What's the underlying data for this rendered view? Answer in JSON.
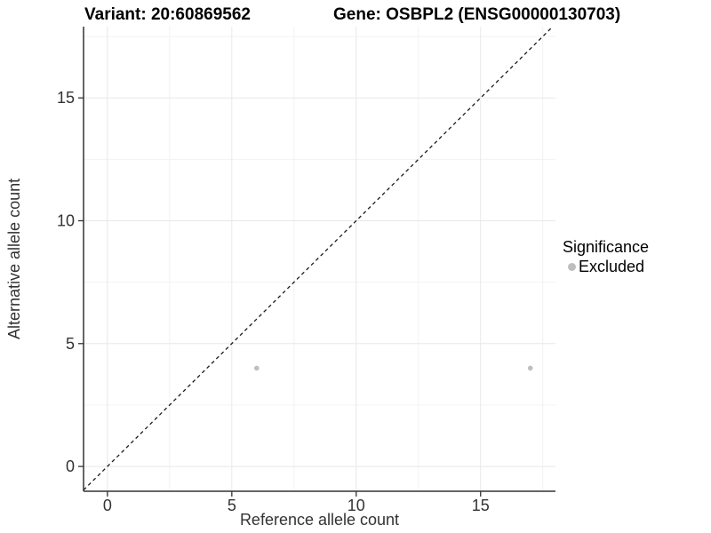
{
  "chart_data": {
    "type": "scatter",
    "titles": {
      "left": "Variant: 20:60869562",
      "right": "Gene: OSBPL2 (ENSG00000130703)"
    },
    "xlabel": "Reference allele count",
    "ylabel": "Alternative allele count",
    "x_ticks": [
      0,
      5,
      10,
      15
    ],
    "y_ticks": [
      0,
      5,
      10,
      15
    ],
    "x_minor_ticks": [
      2.5,
      7.5,
      12.5,
      17.5
    ],
    "y_minor_ticks": [
      2.5,
      7.5,
      12.5,
      17.5
    ],
    "x_range": [
      -0.96,
      18.01
    ],
    "y_range": [
      -1.01,
      17.9
    ],
    "grid": "major+minor",
    "legend_position": "right",
    "identity_line": {
      "style": "dashed",
      "equation": "y = x"
    },
    "series": [
      {
        "name": "Excluded",
        "marker": "circle",
        "color": "#bebebe",
        "points": [
          {
            "x": 6,
            "y": 4
          },
          {
            "x": 17,
            "y": 4
          }
        ]
      }
    ],
    "legend": {
      "title": "Significance",
      "items": [
        {
          "label": "Excluded",
          "color": "#bebebe",
          "marker": "circle"
        }
      ]
    },
    "colors": {
      "background": "#ffffff",
      "grid_major": "#e8e8e8",
      "grid_minor": "#f2f2f2",
      "axis_line": "#333333",
      "tick_text": "#333333",
      "title_text": "#000000",
      "identity_line": "#1a1a1a"
    }
  }
}
